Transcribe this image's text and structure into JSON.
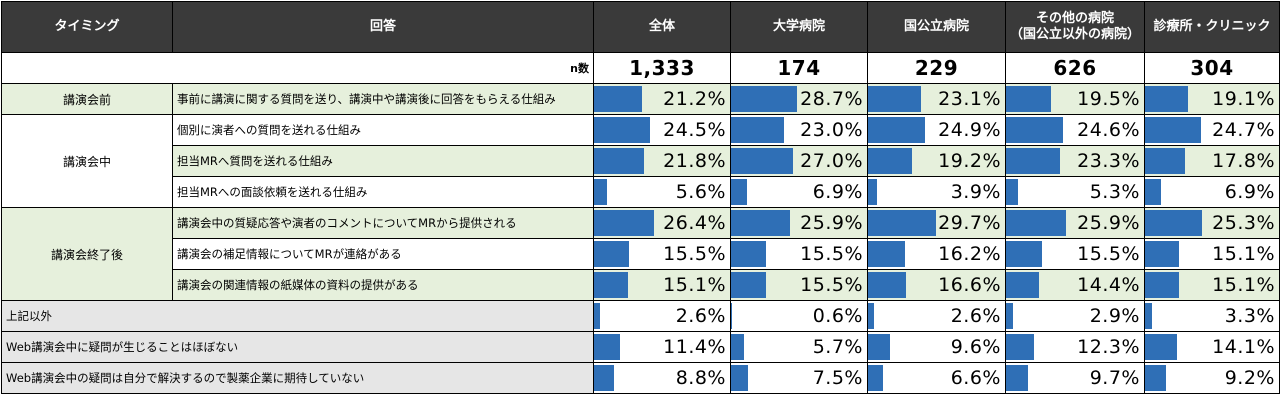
{
  "header": {
    "timing": "タイミング",
    "answer": "回答",
    "cols": [
      "全体",
      "大学病院",
      "国公立病院",
      "その他の病院",
      "診療所・クリニック"
    ],
    "col4_sub": "（国公立以外の病院）"
  },
  "n_label": "n数",
  "n_values": [
    "1,333",
    "174",
    "229",
    "626",
    "304"
  ],
  "timings": {
    "before": "講演会前",
    "during": "講演会中",
    "after": "講演会終了後"
  },
  "chart_data": {
    "type": "table",
    "columns": [
      "全体",
      "大学病院",
      "国公立病院",
      "その他の病院（国公立以外の病院）",
      "診療所・クリニック"
    ],
    "n": [
      1333,
      174,
      229,
      626,
      304
    ],
    "rows": [
      {
        "timing": "講演会前",
        "label": "事前に講演に関する質問を送り、講演中や講演後に回答をもらえる仕組み",
        "values": [
          21.2,
          28.7,
          23.1,
          19.5,
          19.1
        ],
        "display": [
          "21.2%",
          "28.7%",
          "23.1%",
          "19.5%",
          "19.1%"
        ]
      },
      {
        "timing": "講演会中",
        "label": "個別に演者への質問を送れる仕組み",
        "values": [
          24.5,
          23.0,
          24.9,
          24.6,
          24.7
        ],
        "display": [
          "24.5%",
          "23.0%",
          "24.9%",
          "24.6%",
          "24.7%"
        ]
      },
      {
        "timing": "講演会中",
        "label": "担当MRへ質問を送れる仕組み",
        "values": [
          21.8,
          27.0,
          19.2,
          23.3,
          17.8
        ],
        "display": [
          "21.8%",
          "27.0%",
          "19.2%",
          "23.3%",
          "17.8%"
        ]
      },
      {
        "timing": "講演会中",
        "label": "担当MRへの面談依頼を送れる仕組み",
        "values": [
          5.6,
          6.9,
          3.9,
          5.3,
          6.9
        ],
        "display": [
          "5.6%",
          "6.9%",
          "3.9%",
          "5.3%",
          "6.9%"
        ]
      },
      {
        "timing": "講演会終了後",
        "label": "講演会中の質疑応答や演者のコメントについてMRから提供される",
        "values": [
          26.4,
          25.9,
          29.7,
          25.9,
          25.3
        ],
        "display": [
          "26.4%",
          "25.9%",
          "29.7%",
          "25.9%",
          "25.3%"
        ]
      },
      {
        "timing": "講演会終了後",
        "label": "講演会の補足情報についてMRが連絡がある",
        "values": [
          15.5,
          15.5,
          16.2,
          15.5,
          15.1
        ],
        "display": [
          "15.5%",
          "15.5%",
          "16.2%",
          "15.5%",
          "15.1%"
        ]
      },
      {
        "timing": "講演会終了後",
        "label": "講演会の関連情報の紙媒体の資料の提供がある",
        "values": [
          15.1,
          15.5,
          16.6,
          14.4,
          15.1
        ],
        "display": [
          "15.1%",
          "15.5%",
          "16.6%",
          "14.4%",
          "15.1%"
        ]
      },
      {
        "timing": "",
        "label": "上記以外",
        "values": [
          2.6,
          0.6,
          2.6,
          2.9,
          3.3
        ],
        "display": [
          "2.6%",
          "0.6%",
          "2.6%",
          "2.9%",
          "3.3%"
        ]
      },
      {
        "timing": "",
        "label": "Web講演会中に疑問が生じることはほぼない",
        "values": [
          11.4,
          5.7,
          9.6,
          12.3,
          14.1
        ],
        "display": [
          "11.4%",
          "5.7%",
          "9.6%",
          "12.3%",
          "14.1%"
        ]
      },
      {
        "timing": "",
        "label": "Web講演会中の疑問は自分で解決するので製薬企業に期待していない",
        "values": [
          8.8,
          7.5,
          6.6,
          9.7,
          9.2
        ],
        "display": [
          "8.8%",
          "7.5%",
          "6.6%",
          "9.7%",
          "9.2%"
        ]
      }
    ],
    "bar_color": "#2f6fb6",
    "bar_scale_max": 30
  }
}
